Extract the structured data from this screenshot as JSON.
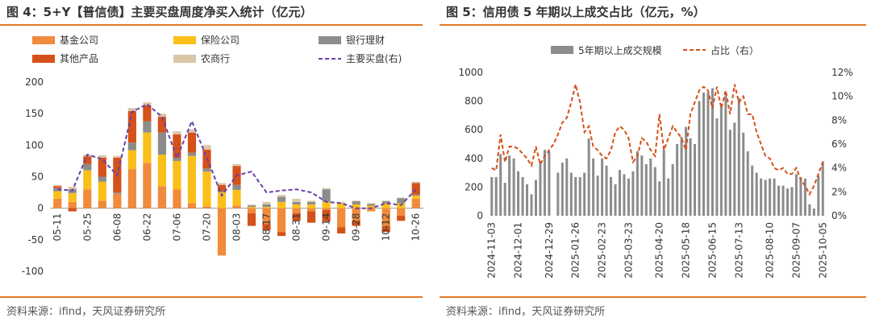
{
  "left": {
    "title": "图 4：5+Y【普信债】主要买盘周度净买入统计（亿元）",
    "source": "资料来源：ifind，天风证券研究所",
    "chart_data": {
      "type": "bar",
      "stacked": true,
      "categories": [
        "05-11",
        "05-18",
        "05-25",
        "06-01",
        "06-08",
        "06-15",
        "06-22",
        "06-29",
        "07-06",
        "07-13",
        "07-20",
        "07-27",
        "08-03",
        "08-10",
        "08-17",
        "08-24",
        "08-31",
        "09-07",
        "09-14",
        "09-21",
        "09-28",
        "10-05",
        "10-12",
        "10-19",
        "10-26"
      ],
      "tick_labels": [
        "05-11",
        "05-25",
        "06-08",
        "06-22",
        "07-06",
        "07-20",
        "08-03",
        "08-17",
        "08-31",
        "09-14",
        "09-28",
        "10-12",
        "10-26"
      ],
      "ylim": [
        -100,
        200
      ],
      "yticks": [
        -100,
        -50,
        0,
        50,
        100,
        150,
        200
      ],
      "series": [
        {
          "name": "基金公司",
          "color": "#f08a3c",
          "values": [
            15,
            10,
            30,
            12,
            23,
            62,
            72,
            35,
            30,
            8,
            3,
            -75,
            4,
            -8,
            -25,
            -38,
            -8,
            -5,
            -3,
            -30,
            -20,
            -5,
            -28,
            -12,
            15
          ]
        },
        {
          "name": "保险公司",
          "color": "#fbbf1a",
          "values": [
            12,
            14,
            30,
            30,
            0,
            30,
            48,
            50,
            45,
            75,
            55,
            25,
            25,
            2,
            2,
            10,
            6,
            6,
            10,
            8,
            6,
            4,
            8,
            8,
            5
          ]
        },
        {
          "name": "银行理财",
          "color": "#8c8c8c",
          "values": [
            5,
            6,
            10,
            8,
            2,
            12,
            18,
            35,
            5,
            5,
            5,
            2,
            8,
            2,
            4,
            8,
            4,
            4,
            20,
            0,
            5,
            3,
            3,
            8,
            2
          ]
        },
        {
          "name": "其他产品",
          "color": "#d4511a",
          "values": [
            3,
            -5,
            12,
            30,
            55,
            50,
            25,
            25,
            37,
            32,
            30,
            10,
            30,
            -20,
            -10,
            -6,
            -12,
            -18,
            -18,
            -10,
            -8,
            0,
            -10,
            -8,
            18
          ]
        },
        {
          "name": "农商行",
          "color": "#d9c7a8",
          "values": [
            2,
            4,
            3,
            4,
            3,
            5,
            5,
            5,
            5,
            5,
            7,
            3,
            3,
            2,
            4,
            3,
            5,
            2,
            2,
            2,
            1,
            1,
            1,
            1,
            2
          ]
        }
      ],
      "line": {
        "name": "主要买盘(右)",
        "color": "#6a3fa8",
        "values": [
          30,
          28,
          85,
          78,
          52,
          153,
          165,
          145,
          80,
          138,
          80,
          20,
          52,
          58,
          25,
          28,
          30,
          25,
          10,
          8,
          0,
          0,
          8,
          5,
          30
        ]
      },
      "legend": [
        "基金公司",
        "保险公司",
        "银行理财",
        "其他产品",
        "农商行",
        "主要买盘(右)"
      ]
    }
  },
  "right": {
    "title": "图 5：信用债 5 年期以上成交占比（亿元，%）",
    "source": "资料来源：ifind，天风证券研究所",
    "chart_data": {
      "type": "bar+line",
      "bar_name": "5年期以上成交规模",
      "line_name": "占比（右）",
      "bar_color": "#8c8c8c",
      "line_color": "#d4511a",
      "bar_values": [
        270,
        270,
        430,
        230,
        420,
        400,
        310,
        270,
        220,
        150,
        250,
        380,
        460,
        450,
        0,
        300,
        370,
        400,
        300,
        270,
        270,
        300,
        540,
        400,
        280,
        400,
        350,
        270,
        220,
        320,
        290,
        260,
        310,
        450,
        420,
        360,
        400,
        340,
        240,
        460,
        260,
        360,
        500,
        550,
        620,
        540,
        500,
        800,
        860,
        860,
        890,
        680,
        760,
        840,
        600,
        650,
        820,
        580,
        450,
        350,
        300,
        260,
        250,
        260,
        260,
        210,
        210,
        190,
        200,
        290,
        270,
        260,
        80,
        50,
        280,
        380
      ],
      "line_values": [
        4.0,
        3.8,
        6.8,
        4.5,
        5.8,
        5.8,
        5.6,
        5.2,
        4.8,
        4.2,
        5.8,
        4.3,
        5.0,
        5.5,
        6.0,
        6.8,
        7.8,
        8.2,
        9.5,
        11.0,
        9.5,
        7.0,
        7.5,
        5.8,
        5.5,
        5.0,
        4.8,
        5.5,
        7.0,
        7.5,
        7.2,
        6.5,
        4.5,
        5.0,
        6.5,
        6.2,
        5.5,
        5.0,
        8.5,
        5.5,
        6.5,
        7.5,
        7.0,
        6.5,
        5.5,
        8.5,
        9.5,
        10.5,
        10.8,
        10.5,
        9.0,
        10.8,
        9.0,
        10.5,
        8.5,
        11.0,
        9.5,
        10.0,
        8.5,
        8.5,
        7.0,
        6.0,
        5.0,
        4.8,
        4.0,
        3.8,
        4.0,
        3.5,
        3.5,
        4.0,
        3.0,
        2.5,
        1.8,
        2.5,
        3.5,
        4.5
      ],
      "ylim_left": [
        0,
        1000
      ],
      "yticks_left": [
        0,
        200,
        400,
        600,
        800,
        1000
      ],
      "ylim_right": [
        0,
        12
      ],
      "yticks_right": [
        "0%",
        "2%",
        "4%",
        "6%",
        "8%",
        "10%",
        "12%"
      ],
      "x_tick_labels": [
        "2024-11-03",
        "2024-12-01",
        "2024-12-29",
        "2025-01-26",
        "2025-02-23",
        "2025-03-23",
        "2025-04-20",
        "2025-05-18",
        "2025-06-15",
        "2025-07-13",
        "2025-08-10",
        "2025-09-07",
        "2025-10-05"
      ]
    }
  }
}
